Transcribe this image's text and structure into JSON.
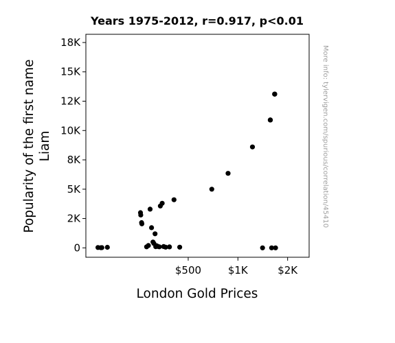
{
  "chart_data": {
    "type": "scatter",
    "title": "Years 1975-2012, r=0.917, p<0.01",
    "xlabel": "London Gold Prices",
    "ylabel_lines": [
      "Popularity of the first name",
      "Liam"
    ],
    "watermark": "More info: tylervigen.com/spurious/correlation/45410",
    "xscale": "log",
    "xlim": [
      120,
      2700
    ],
    "ylim": [
      -800,
      18200
    ],
    "grid": false,
    "point_color": "#000000",
    "xticks": [
      {
        "value": 500,
        "label": "$500"
      },
      {
        "value": 1000,
        "label": "$1K"
      },
      {
        "value": 2000,
        "label": "$2K"
      }
    ],
    "yticks": [
      {
        "value": 0,
        "label": "0"
      },
      {
        "value": 2500,
        "label": "2K"
      },
      {
        "value": 5000,
        "label": "5K"
      },
      {
        "value": 7500,
        "label": "8K"
      },
      {
        "value": 10000,
        "label": "10K"
      },
      {
        "value": 12500,
        "label": "12K"
      },
      {
        "value": 15000,
        "label": "15K"
      },
      {
        "value": 17500,
        "label": "18K"
      }
    ],
    "points": [
      {
        "x": 142,
        "y": 30
      },
      {
        "x": 148,
        "y": 15
      },
      {
        "x": 150,
        "y": 20
      },
      {
        "x": 162,
        "y": 45
      },
      {
        "x": 257,
        "y": 3000
      },
      {
        "x": 258,
        "y": 2800
      },
      {
        "x": 261,
        "y": 2150
      },
      {
        "x": 262,
        "y": 2050
      },
      {
        "x": 280,
        "y": 90
      },
      {
        "x": 287,
        "y": 200
      },
      {
        "x": 294,
        "y": 3300
      },
      {
        "x": 300,
        "y": 1720
      },
      {
        "x": 306,
        "y": 500
      },
      {
        "x": 310,
        "y": 370
      },
      {
        "x": 315,
        "y": 1200
      },
      {
        "x": 318,
        "y": 100
      },
      {
        "x": 322,
        "y": 180
      },
      {
        "x": 328,
        "y": 120
      },
      {
        "x": 334,
        "y": 90
      },
      {
        "x": 339,
        "y": 3570
      },
      {
        "x": 348,
        "y": 3800
      },
      {
        "x": 355,
        "y": 110
      },
      {
        "x": 365,
        "y": 60
      },
      {
        "x": 385,
        "y": 80
      },
      {
        "x": 410,
        "y": 4100
      },
      {
        "x": 444,
        "y": 60
      },
      {
        "x": 695,
        "y": 5000
      },
      {
        "x": 872,
        "y": 6350
      },
      {
        "x": 1225,
        "y": 8600
      },
      {
        "x": 1570,
        "y": 10900
      },
      {
        "x": 1670,
        "y": 13100
      },
      {
        "x": 1670,
        "y": 13100
      },
      {
        "x": 1669,
        "y": 13100
      },
      {
        "x": 1573,
        "y": 10900
      },
      {
        "x": 1410,
        "y": 0
      },
      {
        "x": 1600,
        "y": 0
      },
      {
        "x": 1690,
        "y": 0
      }
    ]
  }
}
